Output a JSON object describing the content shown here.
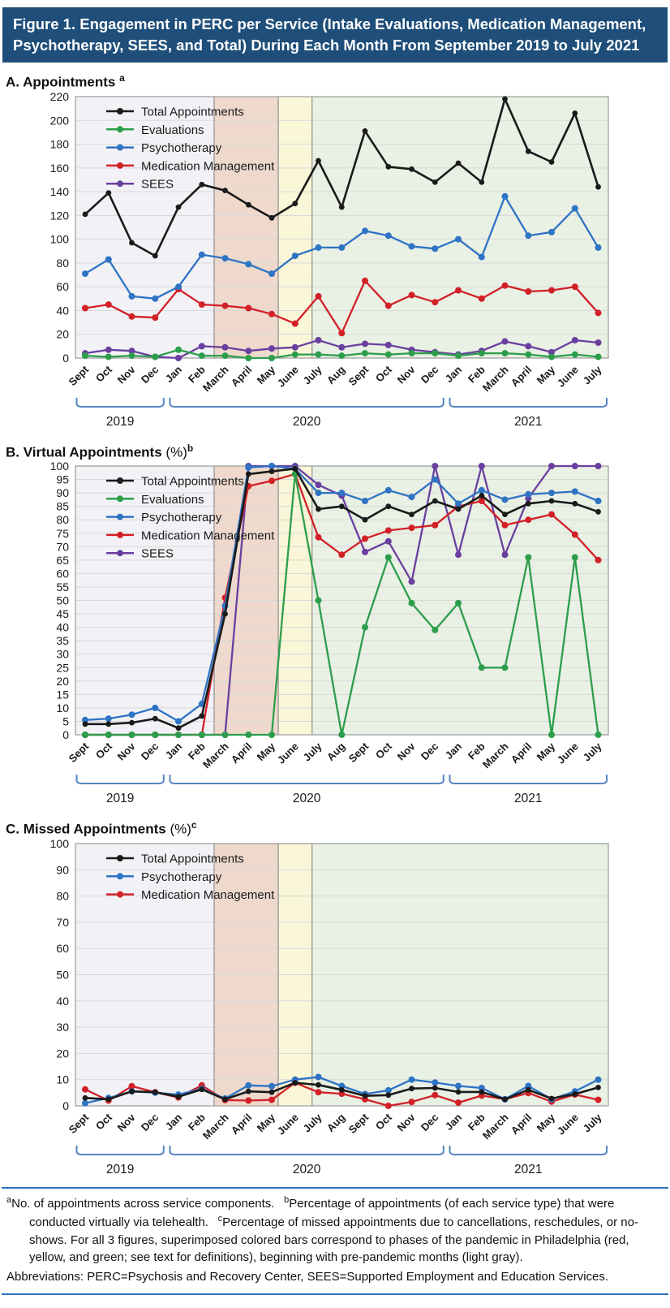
{
  "banner": {
    "title": "Figure 1. Engagement in PERC per Service (Intake Evaluations, Medication Management, Psychotherapy, SEES, and Total) During Each Month From September 2019 to July 2021"
  },
  "months": [
    "Sept",
    "Oct",
    "Nov",
    "Dec",
    "Jan",
    "Feb",
    "March",
    "April",
    "May",
    "June",
    "July",
    "Aug",
    "Sept",
    "Oct",
    "Nov",
    "Dec",
    "Jan",
    "Feb",
    "March",
    "April",
    "May",
    "June",
    "July"
  ],
  "year_groups": [
    {
      "label": "2019",
      "from": 0,
      "to": 3
    },
    {
      "label": "2020",
      "from": 4,
      "to": 15
    },
    {
      "label": "2021",
      "from": 16,
      "to": 22
    }
  ],
  "bands": [
    {
      "phase": "pre-pandemic (light gray)",
      "color": "#f2f2f6",
      "start": -0.5,
      "end": 5.53
    },
    {
      "phase": "red phase",
      "color": "#eed9cc",
      "start": 5.53,
      "end": 8.28
    },
    {
      "phase": "yellow phase",
      "color": "#faf6d8",
      "start": 8.28,
      "end": 9.73
    },
    {
      "phase": "green phase",
      "color": "#e9f0e4",
      "start": 9.73,
      "end": 22.5
    }
  ],
  "chart_data": [
    {
      "id": "A",
      "type": "line",
      "title": "A. Appointments",
      "title_suffix": "",
      "title_sup": "a",
      "ylim": [
        0,
        220
      ],
      "ytick_step": 20,
      "grid": true,
      "legend_position": "top-left",
      "series": [
        {
          "name": "Total Appointments",
          "color": "#1a1a1a",
          "values": [
            121,
            139,
            97,
            86,
            127,
            146,
            141,
            129,
            118,
            130,
            166,
            127,
            191,
            161,
            159,
            148,
            164,
            148,
            218,
            174,
            165,
            206,
            144
          ]
        },
        {
          "name": "Evaluations",
          "color": "#2c9e4b",
          "values": [
            2,
            1,
            2,
            1,
            7,
            2,
            2,
            0,
            0,
            3,
            3,
            2,
            4,
            3,
            4,
            4,
            2,
            4,
            4,
            3,
            1,
            3,
            1
          ]
        },
        {
          "name": "Psychotherapy",
          "color": "#2e73c4",
          "values": [
            71,
            83,
            52,
            50,
            60,
            87,
            84,
            79,
            71,
            86,
            93,
            93,
            107,
            103,
            94,
            92,
            100,
            85,
            136,
            103,
            106,
            126,
            93
          ]
        },
        {
          "name": "Medication Management",
          "color": "#d22027",
          "values": [
            42,
            45,
            35,
            34,
            58,
            45,
            44,
            42,
            37,
            29,
            52,
            21,
            65,
            44,
            53,
            47,
            57,
            50,
            61,
            56,
            57,
            60,
            38
          ]
        },
        {
          "name": "SEES",
          "color": "#6a3fa0",
          "values": [
            4,
            7,
            6,
            1,
            0,
            10,
            9,
            6,
            8,
            9,
            15,
            9,
            12,
            11,
            7,
            5,
            3,
            6,
            14,
            10,
            5,
            15,
            13
          ]
        }
      ]
    },
    {
      "id": "B",
      "type": "line",
      "title": "B. Virtual Appointments",
      "title_suffix": "(%)",
      "title_sup": "b",
      "ylim": [
        0,
        100
      ],
      "ytick_step": 5,
      "grid": true,
      "legend_position": "top-left",
      "series": [
        {
          "name": "Total Appointments",
          "color": "#1a1a1a",
          "values": [
            4,
            4,
            4.5,
            6,
            2.5,
            7,
            45,
            97,
            98,
            99,
            84,
            85,
            80,
            85,
            82,
            87,
            84,
            89,
            82,
            86,
            87,
            86,
            83
          ]
        },
        {
          "name": "Evaluations",
          "color": "#2c9e4b",
          "values": [
            0,
            0,
            0,
            0,
            0,
            0,
            0,
            0,
            0,
            97,
            50,
            0,
            40,
            66,
            49,
            39,
            49,
            25,
            25,
            66,
            0,
            66,
            0
          ]
        },
        {
          "name": "Psychotherapy",
          "color": "#2e73c4",
          "values": [
            5.5,
            6,
            7.5,
            10,
            5,
            11.5,
            48,
            99.5,
            100,
            99,
            90,
            90,
            87,
            91,
            88.5,
            95,
            86,
            91,
            87.5,
            89.5,
            90,
            90.5,
            87
          ]
        },
        {
          "name": "Medication Management",
          "color": "#d22027",
          "values": [
            0,
            0,
            0,
            0,
            0,
            0,
            51,
            92.5,
            94.5,
            97,
            73.5,
            67,
            73,
            76,
            77,
            78,
            85,
            87,
            78,
            80,
            82,
            74.5,
            65
          ]
        },
        {
          "name": "SEES",
          "color": "#6a3fa0",
          "values": [
            0,
            0,
            0,
            0,
            0,
            0,
            0,
            100,
            100,
            100,
            93,
            89,
            68,
            72,
            57,
            100,
            67,
            100,
            67,
            88,
            100,
            100,
            100
          ]
        }
      ]
    },
    {
      "id": "C",
      "type": "line",
      "title": "C. Missed Appointments",
      "title_suffix": "(%)",
      "title_sup": "c",
      "ylim": [
        0,
        100
      ],
      "ytick_step": 10,
      "grid": true,
      "legend_position": "top-left",
      "series": [
        {
          "name": "Total Appointments",
          "color": "#1a1a1a",
          "values": [
            3,
            2.5,
            5.5,
            5.2,
            3.5,
            6.3,
            2.5,
            5.5,
            5.2,
            8.8,
            8,
            6.1,
            3.8,
            4.1,
            6.6,
            6.8,
            5.3,
            5.3,
            2.5,
            6.1,
            2.8,
            4.5,
            7
          ]
        },
        {
          "name": "Psychotherapy",
          "color": "#2e73c4",
          "values": [
            1,
            3,
            5.5,
            5,
            4.3,
            6.5,
            2.8,
            7.8,
            7.5,
            10,
            11,
            7.6,
            4.5,
            5.9,
            10,
            8.9,
            7.6,
            6.8,
            2.5,
            7.6,
            2.5,
            5.5,
            10
          ]
        },
        {
          "name": "Medication Management",
          "color": "#d22027",
          "values": [
            6.3,
            2,
            7.5,
            5.2,
            3.2,
            7.8,
            2.2,
            2,
            2.3,
            8.8,
            5.2,
            4.6,
            2.5,
            0,
            1.5,
            4.1,
            1.2,
            3.9,
            2.5,
            4.9,
            1.6,
            4.3,
            2.3
          ]
        }
      ]
    }
  ],
  "footnotes": [
    {
      "sup": "a",
      "text": "No. of appointments across service components."
    },
    {
      "sup": "b",
      "text": "Percentage of appointments (of each service type) that were conducted virtually via telehealth."
    },
    {
      "sup": "c",
      "text": "Percentage of missed appointments due to cancellations, reschedules, or no-shows. For all 3 figures, superimposed colored bars correspond to phases of the pandemic in Philadelphia (red, yellow, and green; see text for definitions), beginning with pre-pandemic months (light gray)."
    }
  ],
  "abbreviations": "Abbreviations: PERC=Psychosis and Recovery Center, SEES=Supported Employment and Education Services.",
  "colors": {
    "banner_bg": "#1e4e79",
    "banner_text": "#ffffff",
    "bracket": "#5585c2",
    "footnote_rule": "#2e74b5",
    "gridline": "#d9d9d9",
    "plot_border": "#9a9a9a",
    "band_divider": "#8f8f8f"
  }
}
